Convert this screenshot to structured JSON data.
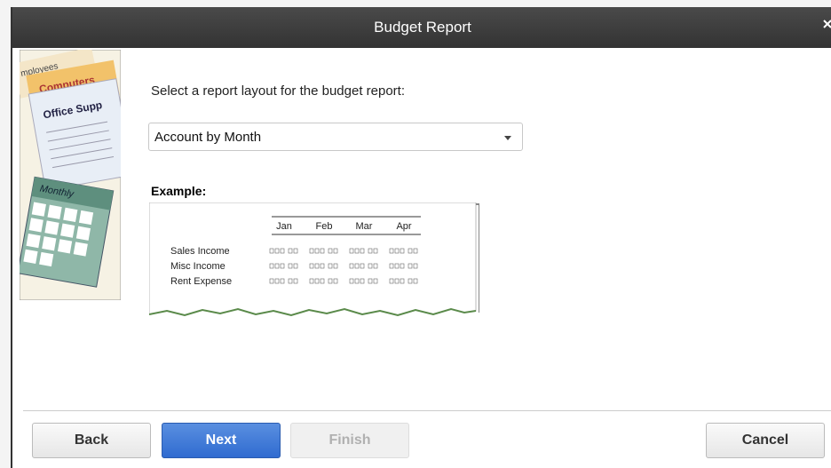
{
  "window": {
    "title": "Budget Report"
  },
  "illustration": {
    "labels": [
      "mployees",
      "Computers",
      "Office Supp",
      "Monthly"
    ]
  },
  "prompt": "Select a report layout for the budget report:",
  "layout_select": {
    "value": "Account by Month"
  },
  "example": {
    "label": "Example:",
    "columns": [
      "Jan",
      "Feb",
      "Mar",
      "Apr"
    ],
    "rows": [
      "Sales Income",
      "Misc Income",
      "Rent Expense"
    ]
  },
  "buttons": {
    "back": "Back",
    "next": "Next",
    "finish": "Finish",
    "cancel": "Cancel"
  }
}
